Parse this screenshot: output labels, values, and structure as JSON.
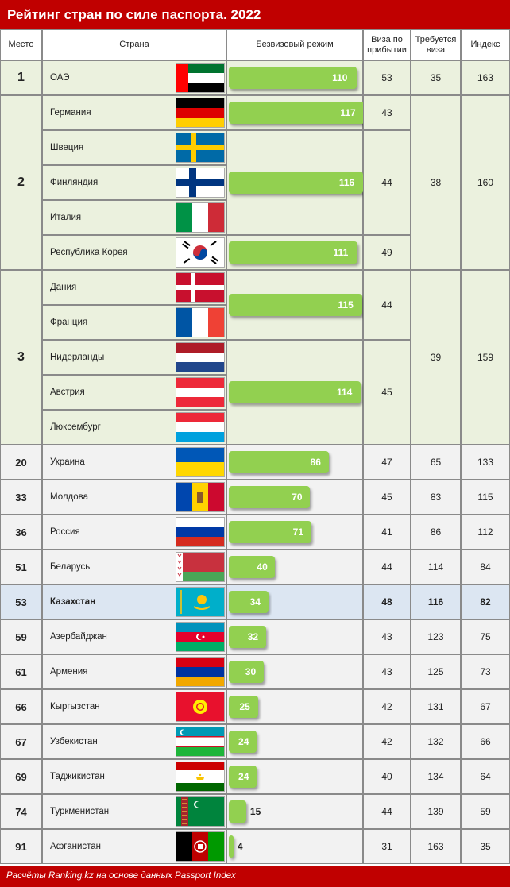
{
  "title": "Рейтинг стран по силе паспорта. 2022",
  "footer": "Расчёты Ranking.kz на основе данных Passport Index",
  "headers": {
    "rank": "Место",
    "country": "Страна",
    "visa_free": "Безвизовый режим",
    "visa_on_arrival": "Виза по прибытии",
    "visa_required": "Требуется виза",
    "index": "Индекс"
  },
  "colors": {
    "title_bar": "#c00000",
    "bar": "#92d050",
    "top_rows": "#ebf1de",
    "other_rows": "#f2f2f2",
    "highlight_row": "#dce6f2"
  },
  "chart_data": {
    "type": "table",
    "title": "Рейтинг стран по силе паспорта. 2022",
    "columns": [
      "Место",
      "Страна",
      "Безвизовый режим",
      "Виза по прибытии",
      "Требуется виза",
      "Индекс"
    ],
    "bar_column": "Безвизовый режим",
    "bar_max": 120,
    "merged_groups": [
      {
        "rank": "1",
        "countries": [
          "ОАЭ"
        ],
        "visa_free": [
          "110"
        ],
        "visa_on_arrival": [
          "53"
        ],
        "visa_required": "35",
        "index": "163"
      },
      {
        "rank": "2",
        "countries": [
          "Германия",
          "Швеция",
          "Финляндия",
          "Италия",
          "Республика Корея"
        ],
        "visa_free": [
          "117",
          "116",
          "111"
        ],
        "visa_on_arrival": [
          "43",
          "44",
          "49"
        ],
        "visa_required": "38",
        "index": "160"
      },
      {
        "rank": "3",
        "countries": [
          "Дания",
          "Франция",
          "Нидерланды",
          "Австрия",
          "Люксембург"
        ],
        "visa_free": [
          "115",
          "114"
        ],
        "visa_on_arrival": [
          "44",
          "45"
        ],
        "visa_required": "39",
        "index": "159"
      }
    ],
    "rows": [
      {
        "rank": "20",
        "country": "Украина",
        "visa_free": 86,
        "visa_on_arrival": "47",
        "visa_required": "65",
        "index": "133"
      },
      {
        "rank": "33",
        "country": "Молдова",
        "visa_free": 70,
        "visa_on_arrival": "45",
        "visa_required": "83",
        "index": "115"
      },
      {
        "rank": "36",
        "country": "Россия",
        "visa_free": 71,
        "visa_on_arrival": "41",
        "visa_required": "86",
        "index": "112"
      },
      {
        "rank": "51",
        "country": "Беларусь",
        "visa_free": 40,
        "visa_on_arrival": "44",
        "visa_required": "114",
        "index": "84"
      },
      {
        "rank": "53",
        "country": "Казахстан",
        "visa_free": 34,
        "visa_on_arrival": "48",
        "visa_required": "116",
        "index": "82",
        "highlight": true
      },
      {
        "rank": "59",
        "country": "Азербайджан",
        "visa_free": 32,
        "visa_on_arrival": "43",
        "visa_required": "123",
        "index": "75"
      },
      {
        "rank": "61",
        "country": "Армения",
        "visa_free": 30,
        "visa_on_arrival": "43",
        "visa_required": "125",
        "index": "73"
      },
      {
        "rank": "66",
        "country": "Кыргызстан",
        "visa_free": 25,
        "visa_on_arrival": "42",
        "visa_required": "131",
        "index": "67"
      },
      {
        "rank": "67",
        "country": "Узбекистан",
        "visa_free": 24,
        "visa_on_arrival": "42",
        "visa_required": "132",
        "index": "66"
      },
      {
        "rank": "69",
        "country": "Таджикистан",
        "visa_free": 24,
        "visa_on_arrival": "40",
        "visa_required": "134",
        "index": "64"
      },
      {
        "rank": "74",
        "country": "Туркменистан",
        "visa_free": 15,
        "visa_on_arrival": "44",
        "visa_required": "139",
        "index": "59"
      },
      {
        "rank": "91",
        "country": "Афганистан",
        "visa_free": 4,
        "visa_on_arrival": "31",
        "visa_required": "163",
        "index": "35"
      }
    ]
  },
  "flags": {
    "ОАЭ": "uae-flag-icon",
    "Германия": "germany-flag-icon",
    "Швеция": "sweden-flag-icon",
    "Финляндия": "finland-flag-icon",
    "Италия": "italy-flag-icon",
    "Республика Корея": "korea-flag-icon",
    "Дания": "denmark-flag-icon",
    "Франция": "france-flag-icon",
    "Нидерланды": "netherlands-flag-icon",
    "Австрия": "austria-flag-icon",
    "Люксембург": "luxembourg-flag-icon",
    "Украина": "ukraine-flag-icon",
    "Молдова": "moldova-flag-icon",
    "Россия": "russia-flag-icon",
    "Беларусь": "belarus-flag-icon",
    "Казахстан": "kazakhstan-flag-icon",
    "Азербайджан": "azerbaijan-flag-icon",
    "Армения": "armenia-flag-icon",
    "Кыргызстан": "kyrgyzstan-flag-icon",
    "Узбекистан": "uzbekistan-flag-icon",
    "Таджикистан": "tajikistan-flag-icon",
    "Туркменистан": "turkmenistan-flag-icon",
    "Афганистан": "afghanistan-flag-icon"
  }
}
